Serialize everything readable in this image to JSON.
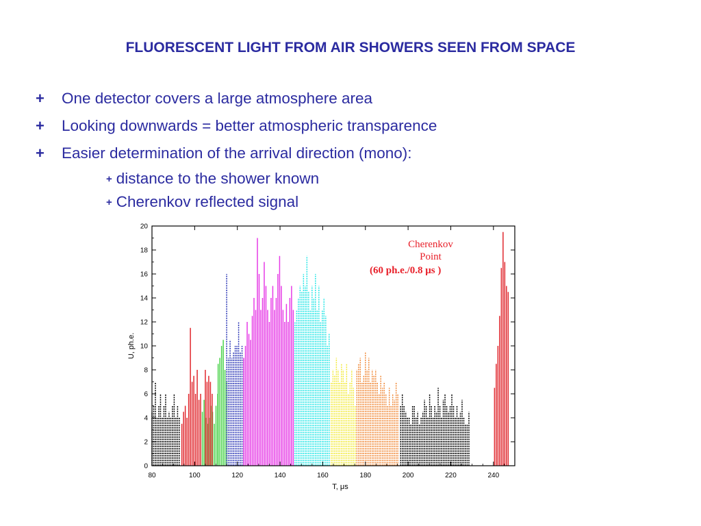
{
  "slide": {
    "title": "FLUORESCENT LIGHT FROM AIR SHOWERS SEEN FROM SPACE",
    "bullets": [
      {
        "marker": "+",
        "text": "One detector covers a large atmosphere area"
      },
      {
        "marker": "+",
        "text": "Looking downwards = better atmospheric transparence"
      },
      {
        "marker": "+",
        "text": "Easier determination of the arrival direction (mono):"
      }
    ],
    "subbullets": [
      {
        "marker": "+",
        "text": "distance to the shower known"
      },
      {
        "marker": "+",
        "text": "Cherenkov reflected signal"
      }
    ]
  },
  "chart_data": {
    "type": "bar",
    "xlabel": "T, μs",
    "ylabel": "U, ph.e.",
    "xlim": [
      80,
      250
    ],
    "ylim": [
      0,
      20
    ],
    "xticks": [
      80,
      100,
      120,
      140,
      160,
      180,
      200,
      220,
      240
    ],
    "yticks": [
      0,
      2,
      4,
      6,
      8,
      10,
      12,
      14,
      16,
      18,
      20
    ],
    "annotation_title": "Cherenkov\nPoint",
    "annotation_note": "(60 ph.e./0.8 μs )",
    "grid": false,
    "bin_width_us": 0.8,
    "series": [
      {
        "color": "#000000",
        "style": "dotted",
        "start": 80,
        "values": [
          4.5,
          5,
          7,
          4,
          5,
          6,
          4,
          5,
          6,
          4,
          4.5,
          4,
          5,
          6,
          4,
          5,
          4
        ]
      },
      {
        "color": "#e0272d",
        "style": "solid",
        "start": 94,
        "values": [
          3.5,
          4.5,
          5,
          4,
          6,
          11.5,
          7,
          7.5,
          6,
          8,
          5.5,
          6
        ]
      },
      {
        "color": "#4bd34b",
        "style": "solid",
        "start": 103.6,
        "values": [
          4.5,
          5.5,
          4,
          3.5,
          4,
          5,
          4.5,
          3.5,
          5,
          6
        ]
      },
      {
        "color": "#e0272d",
        "style": "solid",
        "start": 105,
        "values": [
          8,
          7,
          7.5,
          7,
          6
        ]
      },
      {
        "color": "#4bd34b",
        "style": "solid",
        "start": 111,
        "values": [
          8.5,
          9,
          10,
          10.5,
          8,
          7
        ]
      },
      {
        "color": "#2a35b5",
        "style": "dotted",
        "start": 115,
        "values": [
          16,
          9,
          10.5,
          9,
          9.5,
          10,
          10,
          12,
          9.5,
          10,
          9
        ]
      },
      {
        "color": "#e63be6",
        "style": "solid",
        "start": 123,
        "values": [
          9,
          10,
          12,
          11,
          10.5,
          12.5,
          14,
          13,
          19,
          16,
          13,
          14,
          17,
          15,
          13,
          12,
          14,
          15,
          13,
          14,
          16,
          17.5,
          15,
          13,
          12,
          13.5,
          12,
          14,
          15,
          13
        ]
      },
      {
        "color": "#27e6e6",
        "style": "dotted",
        "start": 147,
        "values": [
          12,
          13,
          14,
          15,
          14.5,
          16,
          15,
          17.5,
          14.5,
          13,
          15,
          14,
          16,
          13,
          15,
          12,
          13,
          14,
          12.5,
          10,
          11
        ]
      },
      {
        "color": "#f2ea3a",
        "style": "dotted",
        "start": 164,
        "values": [
          7,
          8,
          7.5,
          9,
          8,
          7,
          8.5,
          8,
          7,
          8.5,
          6,
          7,
          8,
          6.5,
          5
        ]
      },
      {
        "color": "#f08a3a",
        "style": "dotted",
        "start": 176,
        "values": [
          8,
          8.5,
          9,
          7,
          7.5,
          9.5,
          8,
          9,
          7,
          8,
          7.5,
          8,
          7,
          6,
          7.5,
          6.5,
          7,
          6,
          5,
          6.5,
          5,
          6,
          5.5,
          7,
          6
        ]
      },
      {
        "color": "#000000",
        "style": "dotted",
        "start": 196.5,
        "values": [
          5,
          6,
          5,
          4.5,
          4,
          4,
          3.5,
          5,
          5,
          4,
          4.5,
          3.5,
          4,
          4.5,
          5.5,
          5,
          4,
          6,
          5,
          4,
          5,
          4.5,
          6.5,
          5,
          4,
          5.5,
          6,
          5,
          4.5,
          5,
          6,
          5,
          4,
          5,
          4,
          4.5,
          5.5,
          4,
          3.5,
          3.5,
          4.5
        ]
      },
      {
        "color": "#e0272d",
        "style": "solid",
        "start": 240.5,
        "values": [
          6.5,
          8.5,
          10,
          12.5,
          16.5,
          19.5,
          17,
          15,
          14.5
        ]
      }
    ]
  }
}
